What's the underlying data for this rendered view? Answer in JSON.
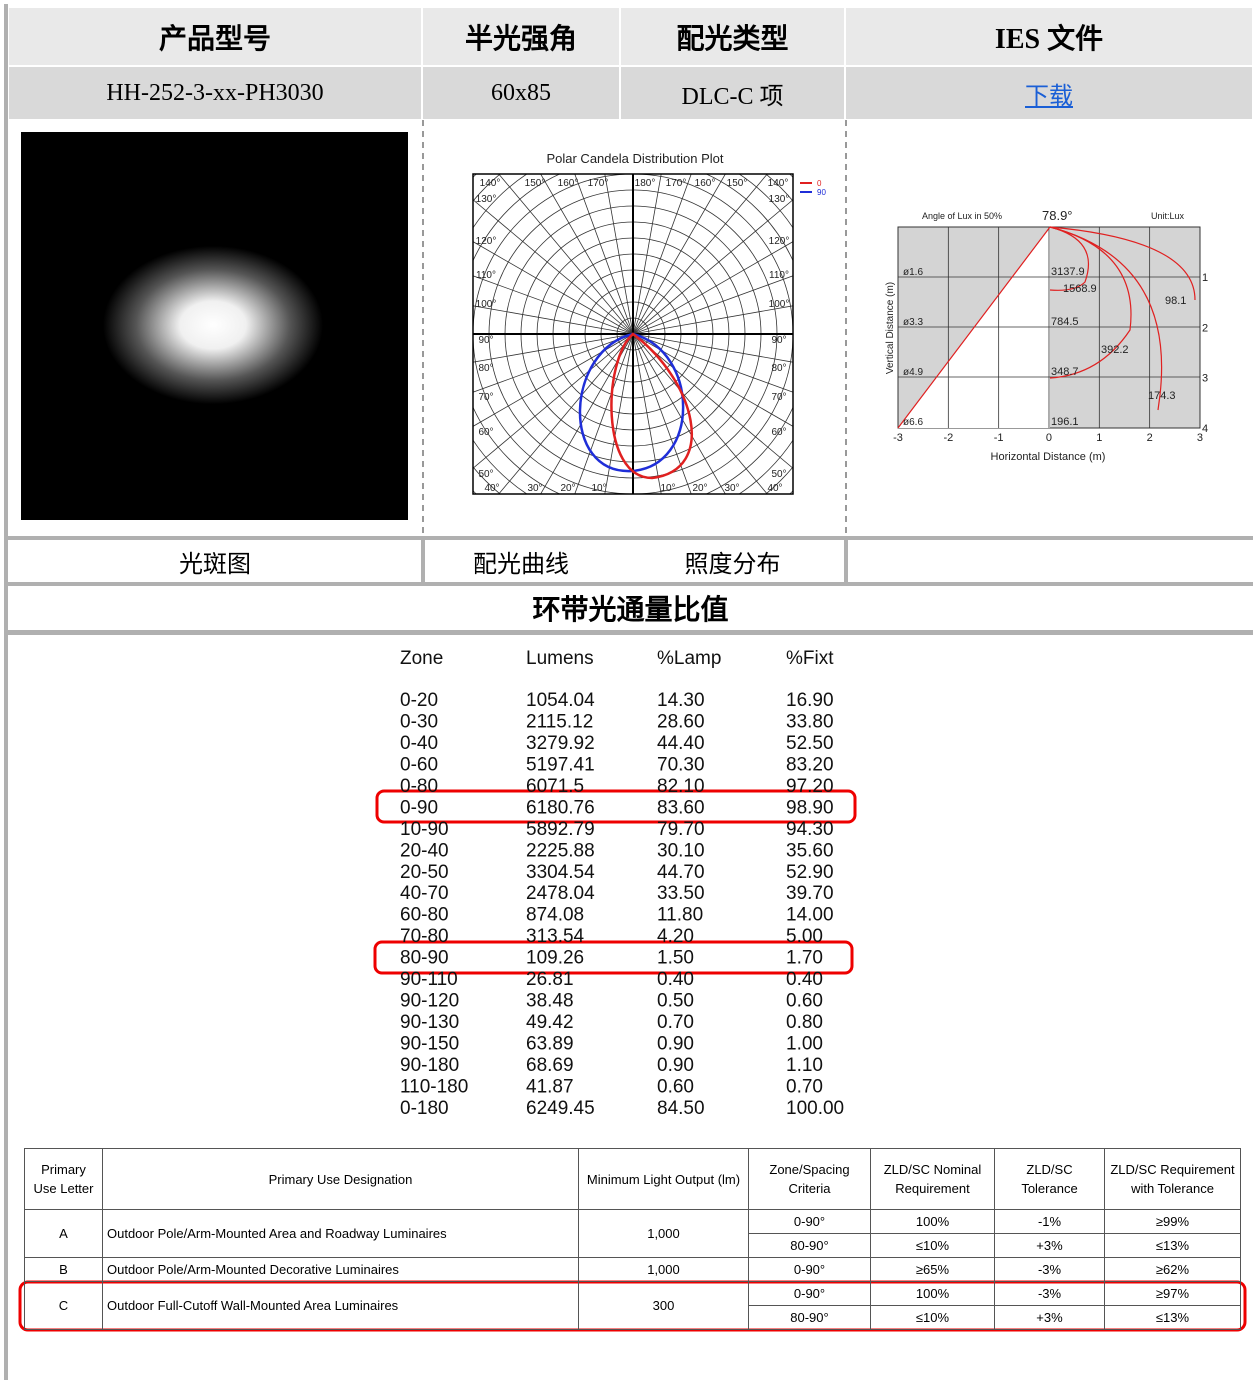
{
  "header": {
    "columns": [
      "产品型号",
      "半光强角",
      "配光类型",
      "IES 文件"
    ],
    "values": [
      "HH-252-3-xx-PH3030",
      "60x85",
      "DLC-C 项",
      "下载"
    ]
  },
  "polar_plot": {
    "title": "Polar Candela Distribution Plot",
    "legend": [
      "0",
      "90"
    ],
    "top_labels": [
      "140°",
      "150°",
      "160°",
      "170°",
      "180°",
      "170°",
      "160°",
      "150°",
      "140°"
    ],
    "side_labels": [
      "130°",
      "120°",
      "110°",
      "100°",
      "90°",
      "80°",
      "70°",
      "60°",
      "50°"
    ],
    "bottom_labels": [
      "40°",
      "30°",
      "20°",
      "10°",
      "10°",
      "20°",
      "30°",
      "40°"
    ]
  },
  "illuminance": {
    "title": "Angle of Lux in 50%",
    "angle": "78.9°",
    "unit": "Unit:Lux",
    "y_axis_label": "Vertical Distance (m)",
    "x_axis_label": "Horizontal Distance (m)",
    "x_ticks": [
      "-3",
      "-2",
      "-1",
      "0",
      "1",
      "2",
      "3"
    ],
    "right_ticks": [
      "1",
      "2",
      "3",
      "4"
    ],
    "diameters": [
      "ø1.6",
      "ø3.3",
      "ø4.9",
      "ø6.6"
    ],
    "lux_values": [
      "3137.9",
      "1568.9",
      "98.1",
      "784.5",
      "392.2",
      "348.7",
      "174.3",
      "196.1"
    ]
  },
  "captions": [
    "光斑图",
    "配光曲线",
    "照度分布"
  ],
  "section_title": "环带光通量比值",
  "zone_table": {
    "columns": [
      "Zone",
      "Lumens",
      "%Lamp",
      "%Fixt"
    ],
    "rows": [
      [
        "0-20",
        "1054.04",
        "14.30",
        "16.90"
      ],
      [
        "0-30",
        "2115.12",
        "28.60",
        "33.80"
      ],
      [
        "0-40",
        "3279.92",
        "44.40",
        "52.50"
      ],
      [
        "0-60",
        "5197.41",
        "70.30",
        "83.20"
      ],
      [
        "0-80",
        "6071.5",
        "82.10",
        "97.20"
      ],
      [
        "0-90",
        "6180.76",
        "83.60",
        "98.90"
      ],
      [
        "10-90",
        "5892.79",
        "79.70",
        "94.30"
      ],
      [
        "20-40",
        "2225.88",
        "30.10",
        "35.60"
      ],
      [
        "20-50",
        "3304.54",
        "44.70",
        "52.90"
      ],
      [
        "40-70",
        "2478.04",
        "33.50",
        "39.70"
      ],
      [
        "60-80",
        "874.08",
        "11.80",
        "14.00"
      ],
      [
        "70-80",
        "313.54",
        "4.20",
        "5.00"
      ],
      [
        "80-90",
        "109.26",
        "1.50",
        "1.70"
      ],
      [
        "90-110",
        "26.81",
        "0.40",
        "0.40"
      ],
      [
        "90-120",
        "38.48",
        "0.50",
        "0.60"
      ],
      [
        "90-130",
        "49.42",
        "0.70",
        "0.80"
      ],
      [
        "90-150",
        "63.89",
        "0.90",
        "1.00"
      ],
      [
        "90-180",
        "68.69",
        "0.90",
        "1.10"
      ],
      [
        "110-180",
        "41.87",
        "0.60",
        "0.70"
      ],
      [
        "0-180",
        "6249.45",
        "84.50",
        "100.00"
      ]
    ]
  },
  "dlc_table": {
    "headers": [
      "Primary Use Letter",
      "Primary Use Designation",
      "Minimum Light Output (lm)",
      "Zone/Spacing Criteria",
      "ZLD/SC Nominal Requirement",
      "ZLD/SC Tolerance",
      "ZLD/SC Requirement with Tolerance"
    ],
    "rows": [
      {
        "letter": "A",
        "designation": "Outdoor Pole/Arm-Mounted Area and Roadway Luminaires",
        "output": "1,000",
        "criteria": [
          [
            "0-90°",
            "100%",
            "-1%",
            "≥99%"
          ],
          [
            "80-90°",
            "≤10%",
            "+3%",
            "≤13%"
          ]
        ]
      },
      {
        "letter": "B",
        "designation": "Outdoor Pole/Arm-Mounted Decorative Luminaires",
        "output": "1,000",
        "criteria": [
          [
            "0-90°",
            "≥65%",
            "-3%",
            "≥62%"
          ]
        ]
      },
      {
        "letter": "C",
        "designation": "Outdoor Full-Cutoff Wall-Mounted Area Luminaires",
        "output": "300",
        "criteria": [
          [
            "0-90°",
            "100%",
            "-3%",
            "≥97%"
          ],
          [
            "80-90°",
            "≤10%",
            "+3%",
            "≤13%"
          ]
        ]
      }
    ]
  }
}
